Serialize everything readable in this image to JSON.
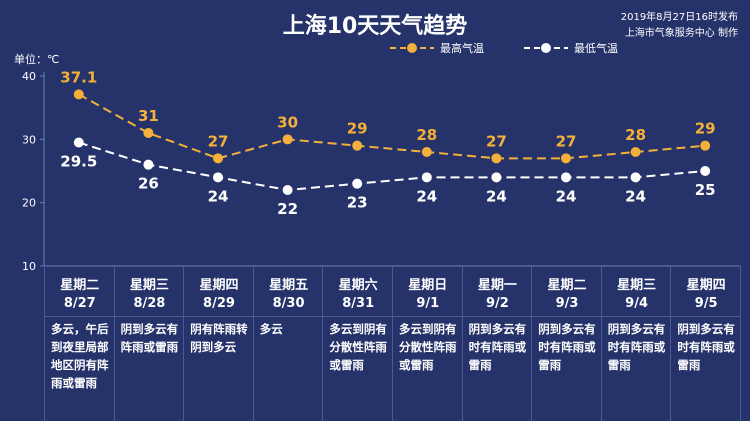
{
  "header": {
    "title": "上海10天天气趋势",
    "publish_line1": "2019年8月27日16时发布",
    "publish_line2": "上海市气象服务中心 制作",
    "unit": "单位：℃"
  },
  "colors": {
    "background": "#25336a",
    "high": "#f4b03a",
    "low": "#ffffff",
    "grid": "#6f7fb0"
  },
  "chart_data": {
    "type": "line",
    "ylim": [
      10,
      40
    ],
    "yticks": [
      10,
      20,
      30,
      40
    ],
    "categories": [
      "8/27",
      "8/28",
      "8/29",
      "8/30",
      "8/31",
      "9/1",
      "9/2",
      "9/3",
      "9/4",
      "9/5"
    ],
    "series": [
      {
        "name": "最高气温",
        "values": [
          37.1,
          31,
          27,
          30,
          29,
          28,
          27,
          27,
          28,
          29
        ]
      },
      {
        "name": "最低气温",
        "values": [
          29.5,
          26,
          24,
          22,
          23,
          24,
          24,
          24,
          24,
          25
        ]
      }
    ]
  },
  "days": [
    {
      "weekday": "星期二",
      "date": "8/27",
      "desc": "多云，午后到夜里局部地区阴有阵雨或雷雨"
    },
    {
      "weekday": "星期三",
      "date": "8/28",
      "desc": "阴到多云有阵雨或雷雨"
    },
    {
      "weekday": "星期四",
      "date": "8/29",
      "desc": "阴有阵雨转阴到多云"
    },
    {
      "weekday": "星期五",
      "date": "8/30",
      "desc": "多云"
    },
    {
      "weekday": "星期六",
      "date": "8/31",
      "desc": "多云到阴有分散性阵雨或雷雨"
    },
    {
      "weekday": "星期日",
      "date": "9/1",
      "desc": "多云到阴有分散性阵雨或雷雨"
    },
    {
      "weekday": "星期一",
      "date": "9/2",
      "desc": "阴到多云有时有阵雨或雷雨"
    },
    {
      "weekday": "星期二",
      "date": "9/3",
      "desc": "阴到多云有时有阵雨或雷雨"
    },
    {
      "weekday": "星期三",
      "date": "9/4",
      "desc": "阴到多云有时有阵雨或雷雨"
    },
    {
      "weekday": "星期四",
      "date": "9/5",
      "desc": "阴到多云有时有阵雨或雷雨"
    }
  ]
}
